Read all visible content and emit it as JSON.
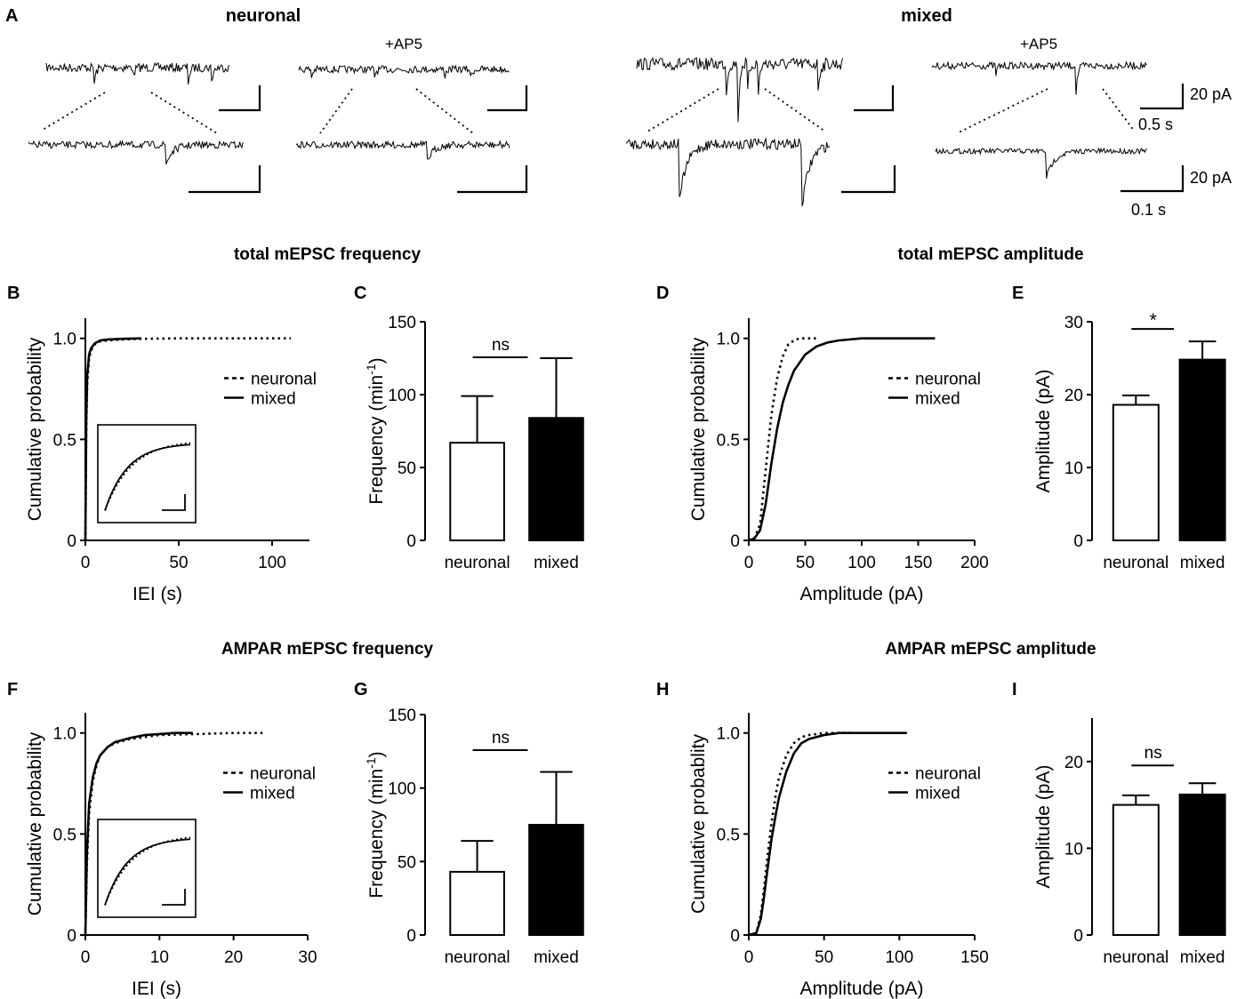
{
  "figure": {
    "panel_A": {
      "letter": "A",
      "groups": [
        {
          "title": "neuronal",
          "drug_label": "+AP5"
        },
        {
          "title": "mixed",
          "drug_label": "+AP5"
        }
      ],
      "scalebar_top": {
        "y_label": "20 pA",
        "x_label": "0.5 s"
      },
      "scalebar_bottom": {
        "y_label": "20 pA",
        "x_label": "0.1 s"
      }
    },
    "section_titles": {
      "total_freq": "total mEPSC frequency",
      "total_amp": "total mEPSC amplitude",
      "ampar_freq": "AMPAR mEPSC frequency",
      "ampar_amp": "AMPAR mEPSC amplitude"
    }
  },
  "chart_data": [
    {
      "id": "B",
      "letter": "B",
      "type": "line",
      "xlabel": "IEI (s)",
      "ylabel": "Cumulative probability",
      "xlim": [
        0,
        120
      ],
      "ylim": [
        0,
        1.1
      ],
      "xticks": [
        0,
        50,
        100
      ],
      "yticks": [
        0,
        0.5,
        1.0
      ],
      "ytick_labels": [
        "0",
        "0.5",
        "1.0"
      ],
      "legend": {
        "placement": "right",
        "entries": [
          "neuronal",
          "mixed"
        ]
      },
      "inset": true,
      "series": [
        {
          "name": "neuronal",
          "style": "dotted",
          "x": [
            0,
            0.5,
            1,
            2,
            3,
            5,
            8,
            12,
            20,
            30,
            50,
            80,
            110
          ],
          "y": [
            0,
            0.55,
            0.78,
            0.9,
            0.94,
            0.97,
            0.985,
            0.99,
            0.995,
            0.998,
            1.0,
            1.0,
            1.0
          ]
        },
        {
          "name": "mixed",
          "style": "solid",
          "x": [
            0,
            0.5,
            1,
            2,
            3,
            5,
            8,
            12,
            20,
            30
          ],
          "y": [
            0,
            0.6,
            0.82,
            0.92,
            0.95,
            0.975,
            0.99,
            0.995,
            0.998,
            1.0
          ]
        }
      ]
    },
    {
      "id": "C",
      "letter": "C",
      "type": "bar",
      "ylabel": "Frequency (min-1)",
      "ylabel_parts": [
        "Frequency (min",
        "-1",
        ")"
      ],
      "categories": [
        "neuronal",
        "mixed"
      ],
      "values": [
        67,
        84
      ],
      "errors": [
        32,
        41
      ],
      "fills": [
        "#ffffff",
        "#000000"
      ],
      "ylim": [
        0,
        150
      ],
      "yticks": [
        0,
        50,
        100,
        150
      ],
      "significance": "ns"
    },
    {
      "id": "D",
      "letter": "D",
      "type": "line",
      "xlabel": "Amplitude (pA)",
      "ylabel": "Cumulative probability",
      "xlim": [
        0,
        200
      ],
      "ylim": [
        0,
        1.1
      ],
      "xticks": [
        0,
        50,
        100,
        150,
        200
      ],
      "yticks": [
        0,
        0.5,
        1.0
      ],
      "ytick_labels": [
        "0",
        "0.5",
        "1.0"
      ],
      "legend": {
        "placement": "right",
        "entries": [
          "neuronal",
          "mixed"
        ]
      },
      "series": [
        {
          "name": "neuronal",
          "style": "dotted",
          "x": [
            0,
            5,
            10,
            15,
            20,
            25,
            30,
            35,
            40,
            45,
            50,
            60
          ],
          "y": [
            0,
            0.01,
            0.08,
            0.35,
            0.62,
            0.8,
            0.91,
            0.97,
            0.99,
            1.0,
            1.0,
            1.0
          ]
        },
        {
          "name": "mixed",
          "style": "solid",
          "x": [
            0,
            5,
            10,
            15,
            20,
            25,
            30,
            35,
            40,
            50,
            60,
            70,
            80,
            100,
            130,
            165
          ],
          "y": [
            0,
            0.01,
            0.05,
            0.18,
            0.38,
            0.55,
            0.68,
            0.77,
            0.84,
            0.92,
            0.96,
            0.98,
            0.99,
            1.0,
            1.0,
            1.0
          ]
        }
      ]
    },
    {
      "id": "E",
      "letter": "E",
      "type": "bar",
      "ylabel": "Amplitude (pA)",
      "categories": [
        "neuronal",
        "mixed"
      ],
      "values": [
        18.6,
        24.8
      ],
      "errors": [
        1.3,
        2.5
      ],
      "fills": [
        "#ffffff",
        "#000000"
      ],
      "ylim": [
        0,
        30
      ],
      "yticks": [
        0,
        10,
        20,
        30
      ],
      "significance": "*"
    },
    {
      "id": "F",
      "letter": "F",
      "type": "line",
      "xlabel": "IEI (s)",
      "ylabel": "Cumulative probability",
      "xlim": [
        0,
        30
      ],
      "ylim": [
        0,
        1.1
      ],
      "xticks": [
        0,
        10,
        20,
        30
      ],
      "yticks": [
        0,
        0.5,
        1.0
      ],
      "ytick_labels": [
        "0",
        "0.5",
        "1.0"
      ],
      "legend": {
        "placement": "right",
        "entries": [
          "neuronal",
          "mixed"
        ]
      },
      "inset": true,
      "series": [
        {
          "name": "neuronal",
          "style": "dotted",
          "x": [
            0,
            0.2,
            0.5,
            1,
            1.5,
            2,
            3,
            4,
            6,
            8,
            10,
            15,
            20,
            24
          ],
          "y": [
            0,
            0.35,
            0.6,
            0.76,
            0.84,
            0.89,
            0.93,
            0.95,
            0.97,
            0.98,
            0.99,
            0.995,
            1.0,
            1.0
          ]
        },
        {
          "name": "mixed",
          "style": "solid",
          "x": [
            0,
            0.2,
            0.5,
            1,
            1.5,
            2,
            3,
            4,
            6,
            8,
            10,
            12,
            14.5
          ],
          "y": [
            0,
            0.4,
            0.65,
            0.78,
            0.85,
            0.89,
            0.93,
            0.955,
            0.975,
            0.99,
            0.995,
            1.0,
            1.0
          ]
        }
      ]
    },
    {
      "id": "G",
      "letter": "G",
      "type": "bar",
      "ylabel": "Frequency (min-1)",
      "ylabel_parts": [
        "Frequency (min",
        "-1",
        ")"
      ],
      "categories": [
        "neuronal",
        "mixed"
      ],
      "values": [
        43,
        75
      ],
      "errors": [
        21,
        36
      ],
      "fills": [
        "#ffffff",
        "#000000"
      ],
      "ylim": [
        0,
        150
      ],
      "yticks": [
        0,
        50,
        100,
        150
      ],
      "significance": "ns"
    },
    {
      "id": "H",
      "letter": "H",
      "type": "line",
      "xlabel": "Amplitude (pA)",
      "ylabel": "Cumulative probablity",
      "xlim": [
        0,
        150
      ],
      "ylim": [
        0,
        1.1
      ],
      "xticks": [
        0,
        50,
        100,
        150
      ],
      "yticks": [
        0,
        0.5,
        1.0
      ],
      "ytick_labels": [
        "0",
        "0.5",
        "1.0"
      ],
      "legend": {
        "placement": "right",
        "entries": [
          "neuronal",
          "mixed"
        ]
      },
      "series": [
        {
          "name": "neuronal",
          "style": "dotted",
          "x": [
            0,
            5,
            8,
            10,
            12,
            15,
            18,
            20,
            25,
            30,
            35,
            40,
            50,
            60,
            70
          ],
          "y": [
            0,
            0.01,
            0.1,
            0.22,
            0.36,
            0.55,
            0.7,
            0.78,
            0.89,
            0.95,
            0.98,
            0.99,
            1.0,
            1.0,
            1.0
          ]
        },
        {
          "name": "mixed",
          "style": "solid",
          "x": [
            0,
            5,
            8,
            10,
            12,
            15,
            18,
            20,
            25,
            30,
            35,
            40,
            50,
            60,
            70,
            85,
            105
          ],
          "y": [
            0,
            0.01,
            0.08,
            0.18,
            0.3,
            0.47,
            0.6,
            0.68,
            0.81,
            0.9,
            0.95,
            0.97,
            0.99,
            1.0,
            1.0,
            1.0,
            1.0
          ]
        }
      ]
    },
    {
      "id": "I",
      "letter": "I",
      "type": "bar",
      "ylabel": "Amplitude (pA)",
      "categories": [
        "neuronal",
        "mixed"
      ],
      "values": [
        15.0,
        16.2
      ],
      "errors": [
        1.1,
        1.3
      ],
      "fills": [
        "#ffffff",
        "#000000"
      ],
      "ylim": [
        0,
        25
      ],
      "yticks": [
        0,
        10,
        20
      ],
      "significance": "ns"
    }
  ]
}
